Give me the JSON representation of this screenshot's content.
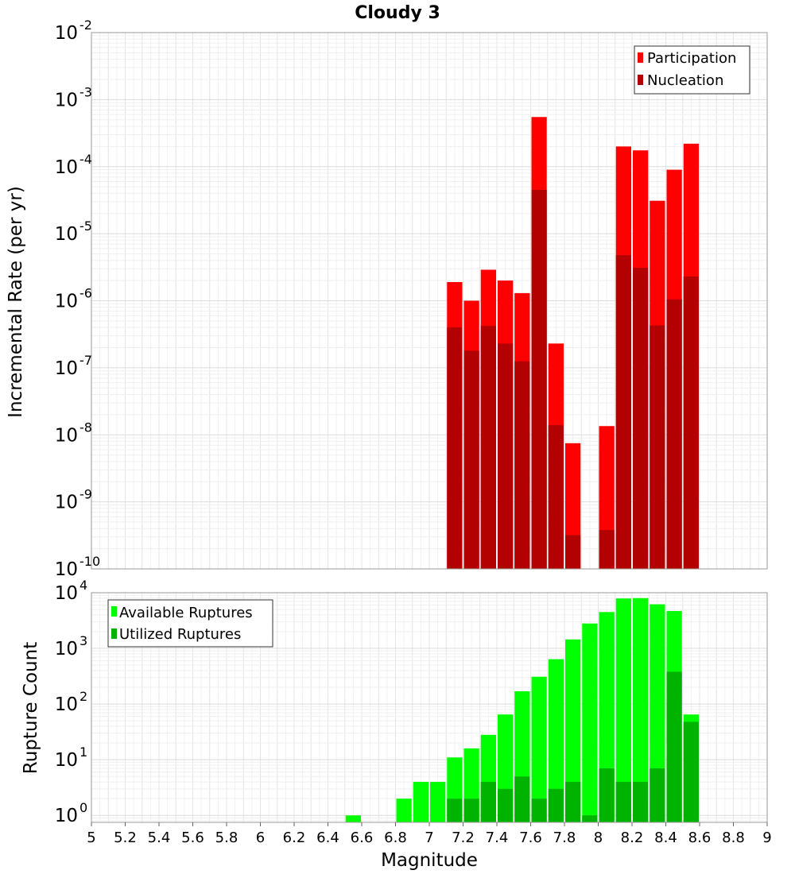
{
  "chart_data": [
    {
      "type": "bar",
      "title": "Cloudy 3",
      "xlabel": "",
      "ylabel": "Incremental Rate (per yr)",
      "xlim": [
        5,
        9
      ],
      "ylim": [
        1e-10,
        0.01
      ],
      "yscale": "log",
      "grid": true,
      "legend_position": "top-right",
      "bin_width": 0.1,
      "x": [
        7.15,
        7.25,
        7.35,
        7.45,
        7.55,
        7.65,
        7.75,
        7.85,
        7.95,
        8.05,
        8.15,
        8.25,
        8.35,
        8.45,
        8.55
      ],
      "series": [
        {
          "name": "Participation",
          "color": "#ff0000",
          "values": [
            1.9e-06,
            1e-06,
            2.9e-06,
            2e-06,
            1.3e-06,
            0.00055,
            2.3e-07,
            7.5e-09,
            null,
            1.35e-08,
            0.0002,
            0.000175,
            3.1e-05,
            9e-05,
            0.00022
          ]
        },
        {
          "name": "Nucleation",
          "color": "#b30000",
          "values": [
            4e-07,
            1.8e-07,
            4.2e-07,
            2.3e-07,
            1.25e-07,
            4.5e-05,
            1.4e-08,
            3.2e-10,
            null,
            3.8e-10,
            4.8e-06,
            3.1e-06,
            4.3e-07,
            1.05e-06,
            2.3e-06
          ]
        }
      ]
    },
    {
      "type": "bar",
      "title": "",
      "xlabel": "Magnitude",
      "ylabel": "Rupture Count",
      "xlim": [
        5,
        9
      ],
      "ylim": [
        0.75,
        10000
      ],
      "yscale": "log",
      "grid": true,
      "legend_position": "top-left",
      "bin_width": 0.1,
      "xticks": [
        "5",
        "5.2",
        "5.4",
        "5.6",
        "5.8",
        "6",
        "6.2",
        "6.4",
        "6.6",
        "6.8",
        "7",
        "7.2",
        "7.4",
        "7.6",
        "7.8",
        "8",
        "8.2",
        "8.4",
        "8.6",
        "8.8",
        "9"
      ],
      "x": [
        6.55,
        6.85,
        6.95,
        7.05,
        7.15,
        7.25,
        7.35,
        7.45,
        7.55,
        7.65,
        7.75,
        7.85,
        7.95,
        8.05,
        8.15,
        8.25,
        8.35,
        8.45,
        8.55
      ],
      "series": [
        {
          "name": "Available Ruptures",
          "color": "#00ff00",
          "values": [
            1,
            2,
            4,
            4,
            11,
            16,
            28,
            65,
            170,
            310,
            640,
            1450,
            2800,
            4500,
            7900,
            8000,
            6200,
            4700,
            65
          ]
        },
        {
          "name": "Utilized Ruptures",
          "color": "#00b300",
          "values": [
            null,
            null,
            null,
            null,
            2,
            2,
            4,
            3,
            5,
            2,
            3,
            4,
            1,
            7,
            4,
            4,
            7,
            380,
            48
          ]
        }
      ]
    }
  ]
}
